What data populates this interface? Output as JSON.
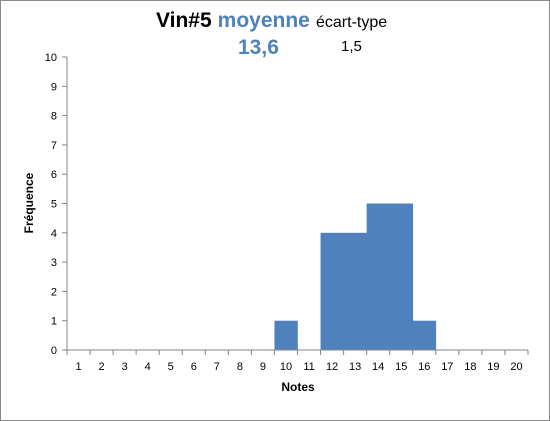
{
  "header": {
    "wine_label": "Vin#5",
    "mean_label": "moyenne",
    "std_label": "écart-type",
    "mean_value": "13,6",
    "std_value": "1,5"
  },
  "colors": {
    "bar": "#4f81bd",
    "mean_text": "#4f81bd",
    "axis": "#868686",
    "frame": "#888888"
  },
  "chart_data": {
    "type": "bar",
    "categories": [
      "1",
      "2",
      "3",
      "4",
      "5",
      "6",
      "7",
      "8",
      "9",
      "10",
      "11",
      "12",
      "13",
      "14",
      "15",
      "16",
      "17",
      "18",
      "19",
      "20"
    ],
    "values": [
      0,
      0,
      0,
      0,
      0,
      0,
      0,
      0,
      0,
      1,
      0,
      4,
      4,
      5,
      5,
      1,
      0,
      0,
      0,
      0
    ],
    "title": "",
    "xlabel": "Notes",
    "ylabel": "Fréquence",
    "ylim": [
      0,
      10
    ],
    "yticks": [
      "0",
      "1",
      "2",
      "3",
      "4",
      "5",
      "6",
      "7",
      "8",
      "9",
      "10"
    ],
    "grid": false,
    "legend": "none"
  }
}
